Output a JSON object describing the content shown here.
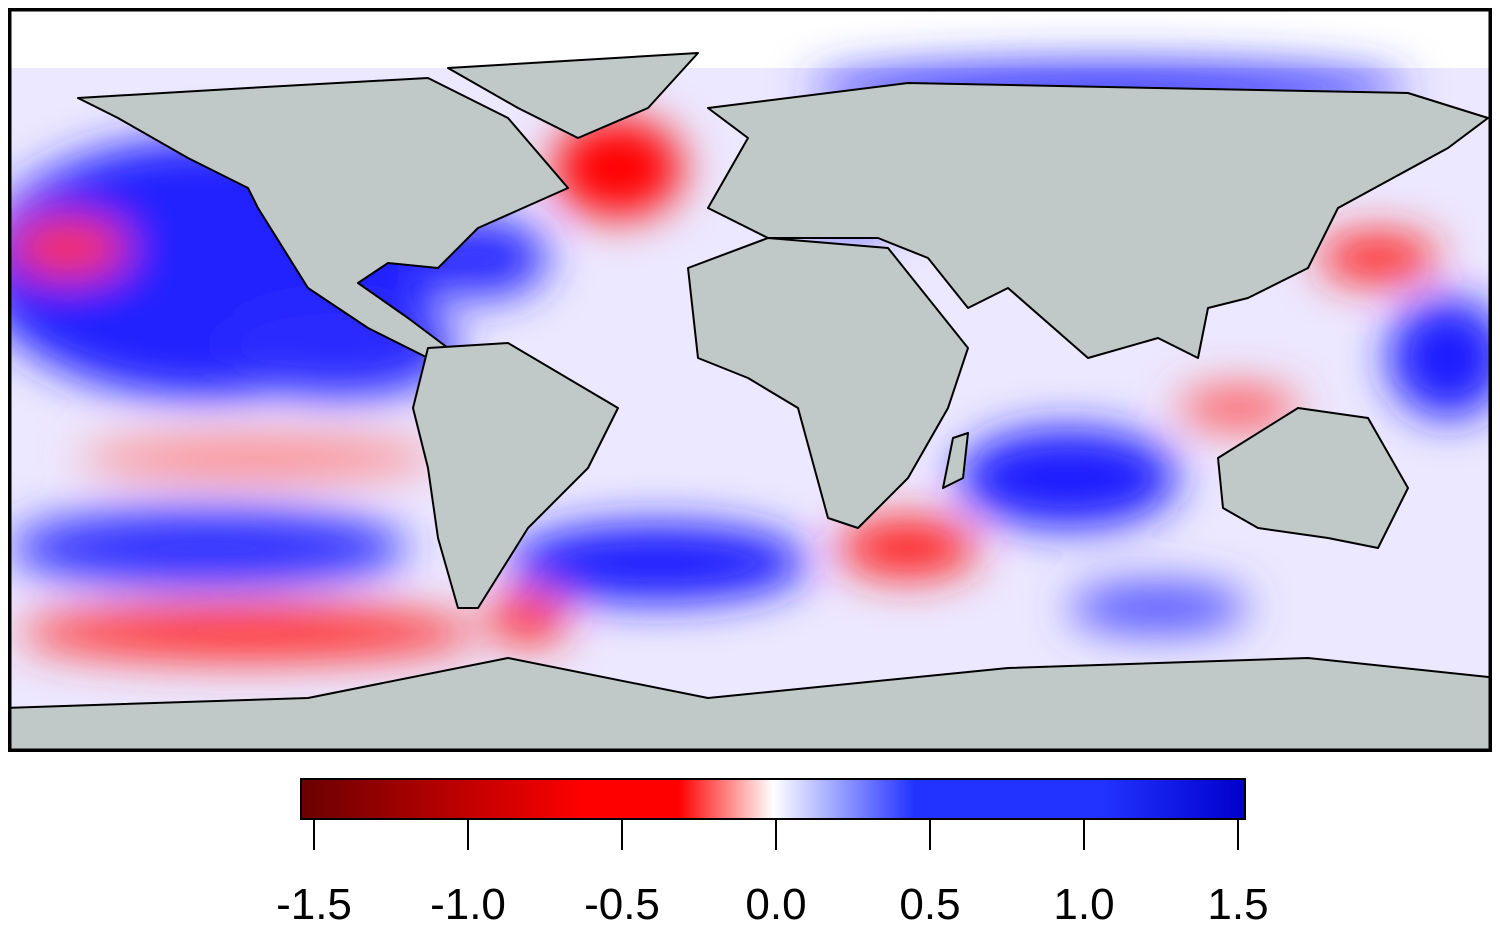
{
  "colorbar": {
    "range": [
      -1.5,
      1.5
    ],
    "ticks": [
      "-1.5",
      "-1.0",
      "-0.5",
      "0.0",
      "0.5",
      "1.0",
      "1.5"
    ],
    "tick_values": [
      -1.5,
      -1.0,
      -0.5,
      0.0,
      0.5,
      1.0,
      1.5
    ],
    "colors": [
      "#6b0000",
      "#ff0000",
      "#ff0000",
      "#ffffff",
      "#2233ff",
      "#2233ff",
      "#0000cc"
    ]
  },
  "map": {
    "land_color": "#c0c8c8",
    "projection": "equirectangular",
    "field_colors": {
      "negative": "#ff0000",
      "positive": "#1a1aff",
      "neutral": "#ffffff"
    }
  }
}
